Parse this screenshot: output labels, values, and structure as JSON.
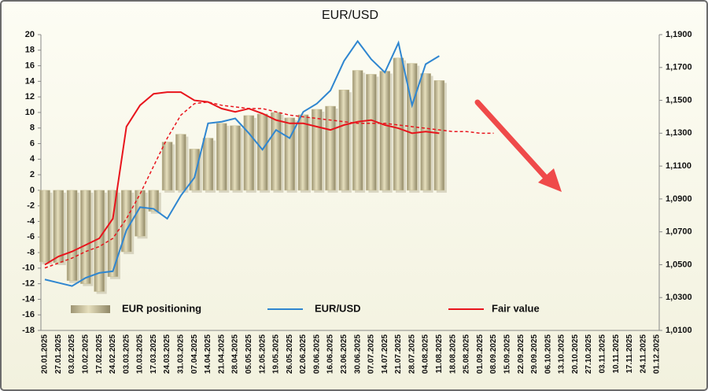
{
  "chart_data": {
    "type": "bar",
    "title": "EUR/USD",
    "categories": [
      "20.01.2025",
      "27.01.2025",
      "03.02.2025",
      "10.02.2025",
      "17.02.2025",
      "24.02.2025",
      "03.03.2025",
      "10.03.2025",
      "17.03.2025",
      "24.03.2025",
      "31.03.2025",
      "07.04.2025",
      "14.04.2025",
      "21.04.2025",
      "28.04.2025",
      "05.05.2025",
      "12.05.2025",
      "19.05.2025",
      "26.05.2025",
      "02.06.2025",
      "09.06.2025",
      "16.06.2025",
      "23.06.2025",
      "30.06.2025",
      "07.07.2025",
      "14.07.2025",
      "21.07.2025",
      "28.07.2025",
      "04.08.2025",
      "11.08.2025",
      "18.08.2025",
      "25.08.2025",
      "01.09.2025",
      "08.09.2025",
      "15.09.2025",
      "22.09.2025",
      "29.09.2025",
      "06.10.2025",
      "13.10.2025",
      "20.10.2025",
      "27.10.2025",
      "03.11.2025",
      "10.11.2025",
      "17.11.2025",
      "24.11.2025",
      "01.12.2025"
    ],
    "series": [
      {
        "name": "EUR positioning",
        "type": "bar",
        "axis": "y",
        "color": "#c8bf94",
        "values": [
          -9.2,
          -9.3,
          -11.6,
          -12.0,
          -13.0,
          -11.1,
          -7.9,
          -5.9,
          -2.7,
          6.2,
          7.2,
          5.3,
          6.7,
          8.6,
          8.3,
          9.6,
          9.8,
          10.0,
          9.3,
          9.7,
          10.4,
          10.8,
          12.9,
          15.4,
          14.9,
          15.3,
          17.0,
          16.3,
          15.0,
          14.1,
          null,
          null,
          null,
          null,
          null,
          null,
          null,
          null,
          null,
          null,
          null,
          null,
          null,
          null,
          null,
          null
        ]
      },
      {
        "name": "EUR/USD",
        "type": "line",
        "axis": "y2",
        "color": "#2f86d0",
        "values": [
          1.041,
          1.039,
          1.037,
          1.042,
          1.045,
          1.046,
          1.071,
          1.085,
          1.084,
          1.078,
          1.092,
          1.103,
          1.136,
          1.137,
          1.139,
          1.13,
          1.12,
          1.132,
          1.127,
          1.143,
          1.148,
          1.156,
          1.174,
          1.186,
          1.175,
          1.167,
          1.185,
          1.147,
          1.172,
          1.177,
          null,
          null,
          null,
          null,
          null,
          null,
          null,
          null,
          null,
          null,
          null,
          null,
          null,
          null,
          null,
          null
        ]
      },
      {
        "name": "Fair value",
        "type": "line",
        "axis": "y2",
        "color": "#e8141c",
        "values": [
          1.05,
          1.055,
          1.058,
          1.062,
          1.066,
          1.078,
          1.134,
          1.147,
          1.154,
          1.155,
          1.155,
          1.15,
          1.149,
          1.145,
          1.143,
          1.145,
          1.142,
          1.138,
          1.136,
          1.136,
          1.134,
          1.132,
          1.135,
          1.137,
          1.138,
          1.135,
          1.133,
          1.13,
          1.131,
          1.13,
          null,
          null,
          null,
          null,
          null,
          null,
          null,
          null,
          null,
          null,
          null,
          null,
          null,
          null,
          null,
          null
        ]
      },
      {
        "type": "line",
        "dashed": true,
        "axis": "y2",
        "color": "#e8141c",
        "values": [
          1.048,
          1.051,
          1.054,
          1.058,
          1.061,
          1.066,
          1.078,
          1.093,
          1.11,
          1.127,
          1.141,
          1.148,
          1.149,
          1.147,
          1.146,
          1.145,
          1.145,
          1.143,
          1.141,
          1.14,
          1.139,
          1.138,
          1.137,
          1.136,
          1.136,
          1.136,
          1.135,
          1.134,
          1.133,
          1.132,
          1.131,
          1.131,
          1.13,
          1.13,
          null,
          null,
          null,
          null,
          null,
          null,
          null,
          null,
          null,
          null,
          null,
          null
        ]
      }
    ],
    "ylim": [
      -18,
      20
    ],
    "yticks": [
      -18,
      -16,
      -14,
      -12,
      -10,
      -8,
      -6,
      -4,
      -2,
      0,
      2,
      4,
      6,
      8,
      10,
      12,
      14,
      16,
      18,
      20
    ],
    "y2lim": [
      1.01,
      1.19
    ],
    "y2ticks": [
      {
        "value": 1.01,
        "label": "1,0100"
      },
      {
        "value": 1.03,
        "label": "1,0300"
      },
      {
        "value": 1.05,
        "label": "1,0500"
      },
      {
        "value": 1.07,
        "label": "1,0700"
      },
      {
        "value": 1.09,
        "label": "1,0900"
      },
      {
        "value": 1.11,
        "label": "1,1100"
      },
      {
        "value": 1.13,
        "label": "1,1300"
      },
      {
        "value": 1.15,
        "label": "1,1500"
      },
      {
        "value": 1.17,
        "label": "1,1700"
      },
      {
        "value": 1.19,
        "label": "1,1900"
      }
    ],
    "grid": false,
    "legend": "bottom"
  }
}
